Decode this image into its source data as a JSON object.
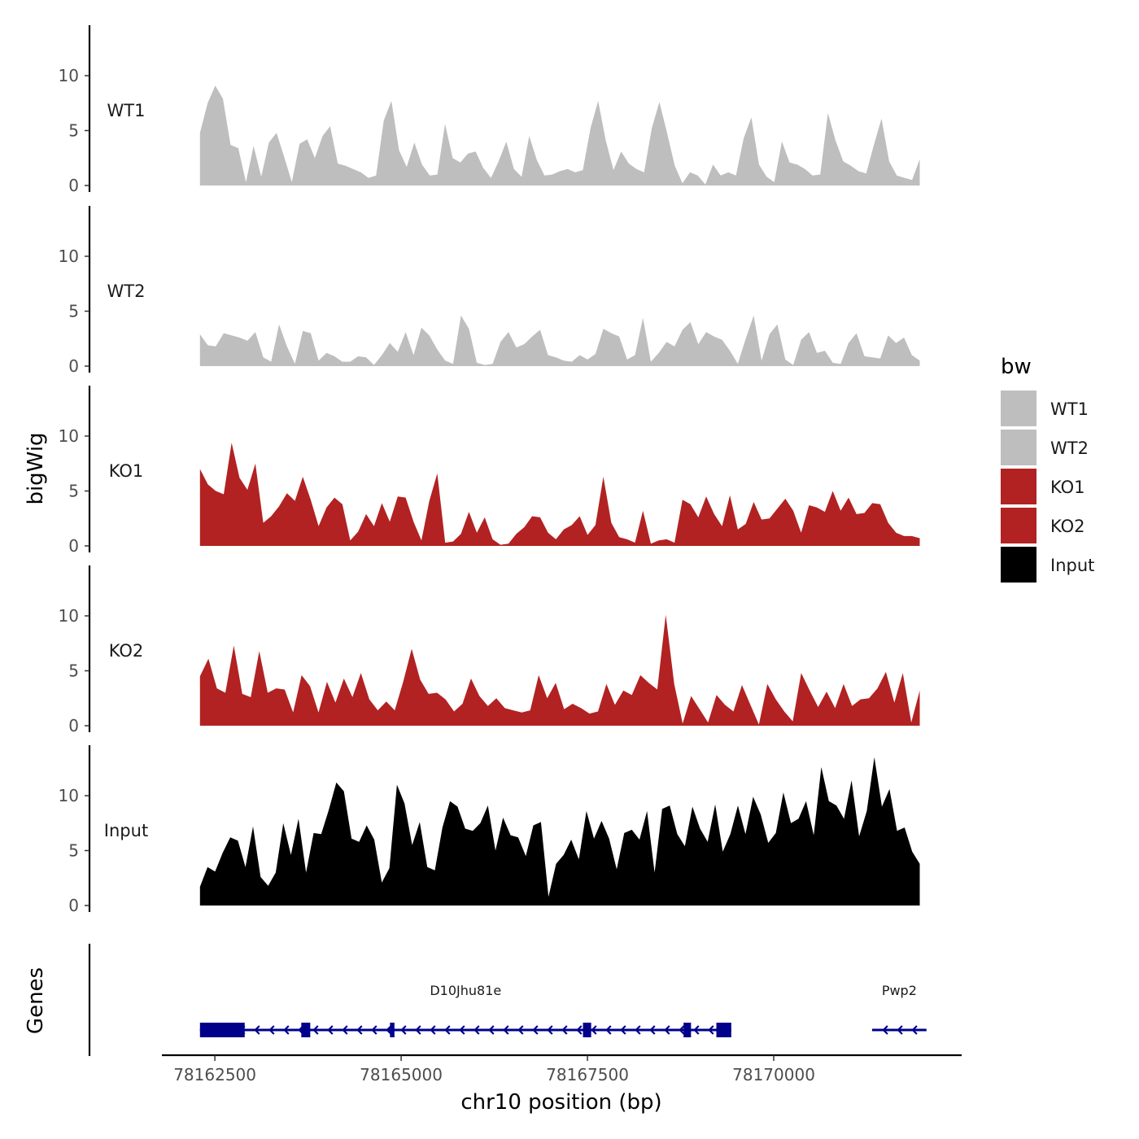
{
  "chart_data": {
    "type": "area",
    "title": "",
    "xlabel": "chr10 position (bp)",
    "ylabel": "bigWig",
    "genes_label": "Genes",
    "xlim": [
      78161800,
      78172500
    ],
    "x_tick_values": [
      78162500,
      78165000,
      78167500,
      78170000
    ],
    "x_tick_labels": [
      "78162500",
      "78165000",
      "78167500",
      "78170000"
    ],
    "ylim": [
      0,
      15
    ],
    "y_ticks": [
      0,
      5,
      10
    ],
    "y_tick_labels": [
      "0",
      "5",
      "10"
    ],
    "x_start": 78162300,
    "x_end": 78171960,
    "legend": {
      "title": "bw",
      "entries": [
        {
          "label": "WT1",
          "color": "#bebebe"
        },
        {
          "label": "WT2",
          "color": "#bebebe"
        },
        {
          "label": "KO1",
          "color": "#b22222"
        },
        {
          "label": "KO2",
          "color": "#b22222"
        },
        {
          "label": "Input",
          "color": "#000000"
        }
      ]
    },
    "series": [
      {
        "name": "WT1",
        "label": "WT1",
        "color": "#bebebe",
        "values": [
          4.8,
          7.5,
          9.1,
          7.9,
          3.7,
          3.4,
          0.3,
          3.6,
          0.8,
          3.9,
          4.8,
          2.6,
          0.3,
          3.8,
          4.2,
          2.5,
          4.5,
          5.4,
          2.0,
          1.8,
          1.5,
          1.2,
          0.7,
          0.9,
          5.9,
          7.7,
          3.2,
          1.7,
          3.9,
          1.9,
          0.9,
          1.0,
          5.6,
          2.5,
          2.1,
          2.9,
          3.1,
          1.6,
          0.7,
          2.2,
          4.0,
          1.5,
          0.8,
          4.5,
          2.3,
          0.9,
          1.0,
          1.3,
          1.5,
          1.2,
          1.4,
          5.2,
          7.7,
          4.1,
          1.4,
          3.1,
          2.0,
          1.5,
          1.2,
          5.2,
          7.6,
          4.8,
          1.8,
          0.2,
          1.2,
          0.9,
          0.1,
          1.9,
          0.9,
          1.2,
          0.9,
          4.3,
          6.2,
          1.9,
          0.8,
          0.3,
          4.0,
          2.1,
          1.9,
          1.5,
          0.9,
          1.0,
          6.6,
          4.1,
          2.2,
          1.8,
          1.3,
          1.1,
          3.7,
          6.1,
          2.2,
          0.9,
          0.7,
          0.5,
          2.4
        ],
        "values_all_visible": false
      },
      {
        "name": "WT2",
        "label": "WT2",
        "color": "#bebebe",
        "values": [
          2.9,
          1.9,
          1.8,
          3.0,
          2.8,
          2.6,
          2.3,
          3.1,
          0.8,
          0.4,
          3.8,
          1.8,
          0.2,
          3.2,
          3.0,
          0.5,
          1.2,
          0.9,
          0.4,
          0.4,
          0.9,
          0.8,
          0.1,
          1.0,
          2.1,
          1.3,
          3.1,
          1.0,
          3.5,
          2.8,
          1.5,
          0.5,
          0.2,
          4.6,
          3.4,
          0.3,
          0.1,
          0.2,
          2.2,
          3.1,
          1.7,
          2.0,
          2.7,
          3.3,
          1.0,
          0.8,
          0.5,
          0.4,
          1.0,
          0.6,
          1.1,
          3.4,
          3.0,
          2.7,
          0.6,
          1.0,
          4.4,
          0.4,
          1.2,
          2.2,
          1.8,
          3.3,
          4.0,
          2.0,
          3.1,
          2.7,
          2.4,
          1.4,
          0.2,
          2.5,
          4.6,
          0.5,
          2.9,
          3.8,
          0.6,
          0.1,
          2.4,
          3.1,
          1.2,
          1.4,
          0.3,
          0.2,
          2.1,
          3.0,
          0.9,
          0.8,
          0.7,
          2.8,
          2.1,
          2.6,
          1.0,
          0.5
        ],
        "values_all_visible": false
      },
      {
        "name": "KO1",
        "label": "KO1",
        "color": "#b22222",
        "values": [
          7.0,
          5.6,
          5.0,
          4.7,
          9.4,
          6.2,
          5.1,
          7.5,
          2.1,
          2.7,
          3.6,
          4.8,
          4.1,
          6.3,
          4.2,
          1.8,
          3.5,
          4.4,
          3.8,
          0.5,
          1.3,
          2.9,
          1.8,
          3.9,
          2.2,
          4.5,
          4.4,
          2.2,
          0.5,
          4.1,
          6.6,
          0.3,
          0.4,
          1.1,
          3.1,
          1.2,
          2.6,
          0.6,
          0.1,
          0.2,
          1.1,
          1.7,
          2.7,
          2.6,
          1.2,
          0.6,
          1.5,
          1.9,
          2.7,
          1.0,
          1.9,
          6.3,
          2.1,
          0.8,
          0.6,
          0.3,
          3.2,
          0.2,
          0.5,
          0.6,
          0.3,
          4.2,
          3.8,
          2.6,
          4.5,
          2.9,
          1.8,
          4.6,
          1.5,
          2.0,
          4.0,
          2.4,
          2.5,
          3.4,
          4.3,
          3.2,
          1.2,
          3.7,
          3.5,
          3.1,
          5.0,
          3.2,
          4.4,
          2.9,
          3.0,
          3.9,
          3.8,
          2.1,
          1.2,
          0.9,
          0.9,
          0.7
        ],
        "values_all_visible": false
      },
      {
        "name": "KO2",
        "label": "KO2",
        "color": "#b22222",
        "values": [
          4.5,
          6.1,
          3.4,
          3.0,
          7.3,
          2.9,
          2.6,
          6.8,
          3.0,
          3.4,
          3.3,
          1.2,
          4.6,
          3.6,
          1.2,
          4.0,
          2.1,
          4.3,
          2.6,
          4.8,
          2.4,
          1.4,
          2.2,
          1.4,
          4.0,
          7.0,
          4.2,
          2.9,
          3.0,
          2.4,
          1.3,
          2.0,
          4.3,
          2.7,
          1.8,
          2.5,
          1.6,
          1.4,
          1.2,
          1.4,
          4.6,
          2.5,
          3.9,
          1.5,
          2.0,
          1.6,
          1.1,
          1.3,
          3.8,
          1.9,
          3.2,
          2.8,
          4.6,
          3.9,
          3.3,
          10.1,
          3.8,
          0.2,
          2.7,
          1.5,
          0.3,
          2.8,
          1.9,
          1.3,
          3.7,
          1.9,
          0.1,
          3.8,
          2.4,
          1.3,
          0.4,
          4.8,
          3.2,
          1.7,
          3.1,
          1.6,
          3.8,
          1.8,
          2.4,
          2.5,
          3.4,
          4.9,
          2.1,
          4.8,
          0.3,
          3.2
        ],
        "values_all_visible": false
      },
      {
        "name": "Input",
        "label": "Input",
        "color": "#000000",
        "values": [
          1.7,
          3.5,
          3.1,
          4.8,
          6.2,
          5.9,
          3.5,
          7.2,
          2.6,
          1.8,
          3.0,
          7.5,
          4.6,
          7.9,
          3.0,
          6.6,
          6.5,
          8.7,
          11.2,
          10.4,
          6.1,
          5.8,
          7.3,
          6.0,
          2.1,
          3.4,
          11.0,
          9.3,
          5.5,
          7.6,
          3.5,
          3.2,
          7.1,
          9.5,
          9.0,
          7.0,
          6.8,
          7.5,
          9.1,
          5.0,
          8.0,
          6.4,
          6.2,
          4.5,
          7.3,
          7.6,
          0.8,
          3.8,
          4.6,
          6.0,
          4.2,
          8.6,
          6.1,
          7.7,
          6.1,
          3.3,
          6.6,
          6.9,
          6.0,
          8.6,
          3.0,
          8.8,
          9.1,
          6.5,
          5.4,
          9.0,
          7.0,
          5.8,
          9.2,
          4.9,
          6.5,
          9.1,
          6.5,
          9.9,
          8.3,
          5.7,
          6.6,
          10.3,
          7.5,
          7.9,
          9.5,
          6.4,
          12.6,
          9.5,
          9.1,
          7.9,
          11.4,
          6.3,
          8.6,
          13.5,
          9.0,
          10.6,
          6.8,
          7.1,
          4.9,
          3.8
        ],
        "values_all_visible": false
      }
    ],
    "genes": [
      {
        "name": "D10Jhu81e",
        "strand": "-",
        "start": 78162300,
        "end": 78169430,
        "exons": [
          [
            78162300,
            78162900
          ],
          [
            78163660,
            78163780
          ],
          [
            78164850,
            78164910
          ],
          [
            78167440,
            78167550
          ],
          [
            78168790,
            78168890
          ],
          [
            78169230,
            78169270
          ],
          [
            78169240,
            78169430
          ]
        ]
      },
      {
        "name": "Pwp2",
        "strand": "-",
        "start": 78171320,
        "end": 78172050,
        "exons": []
      }
    ]
  }
}
